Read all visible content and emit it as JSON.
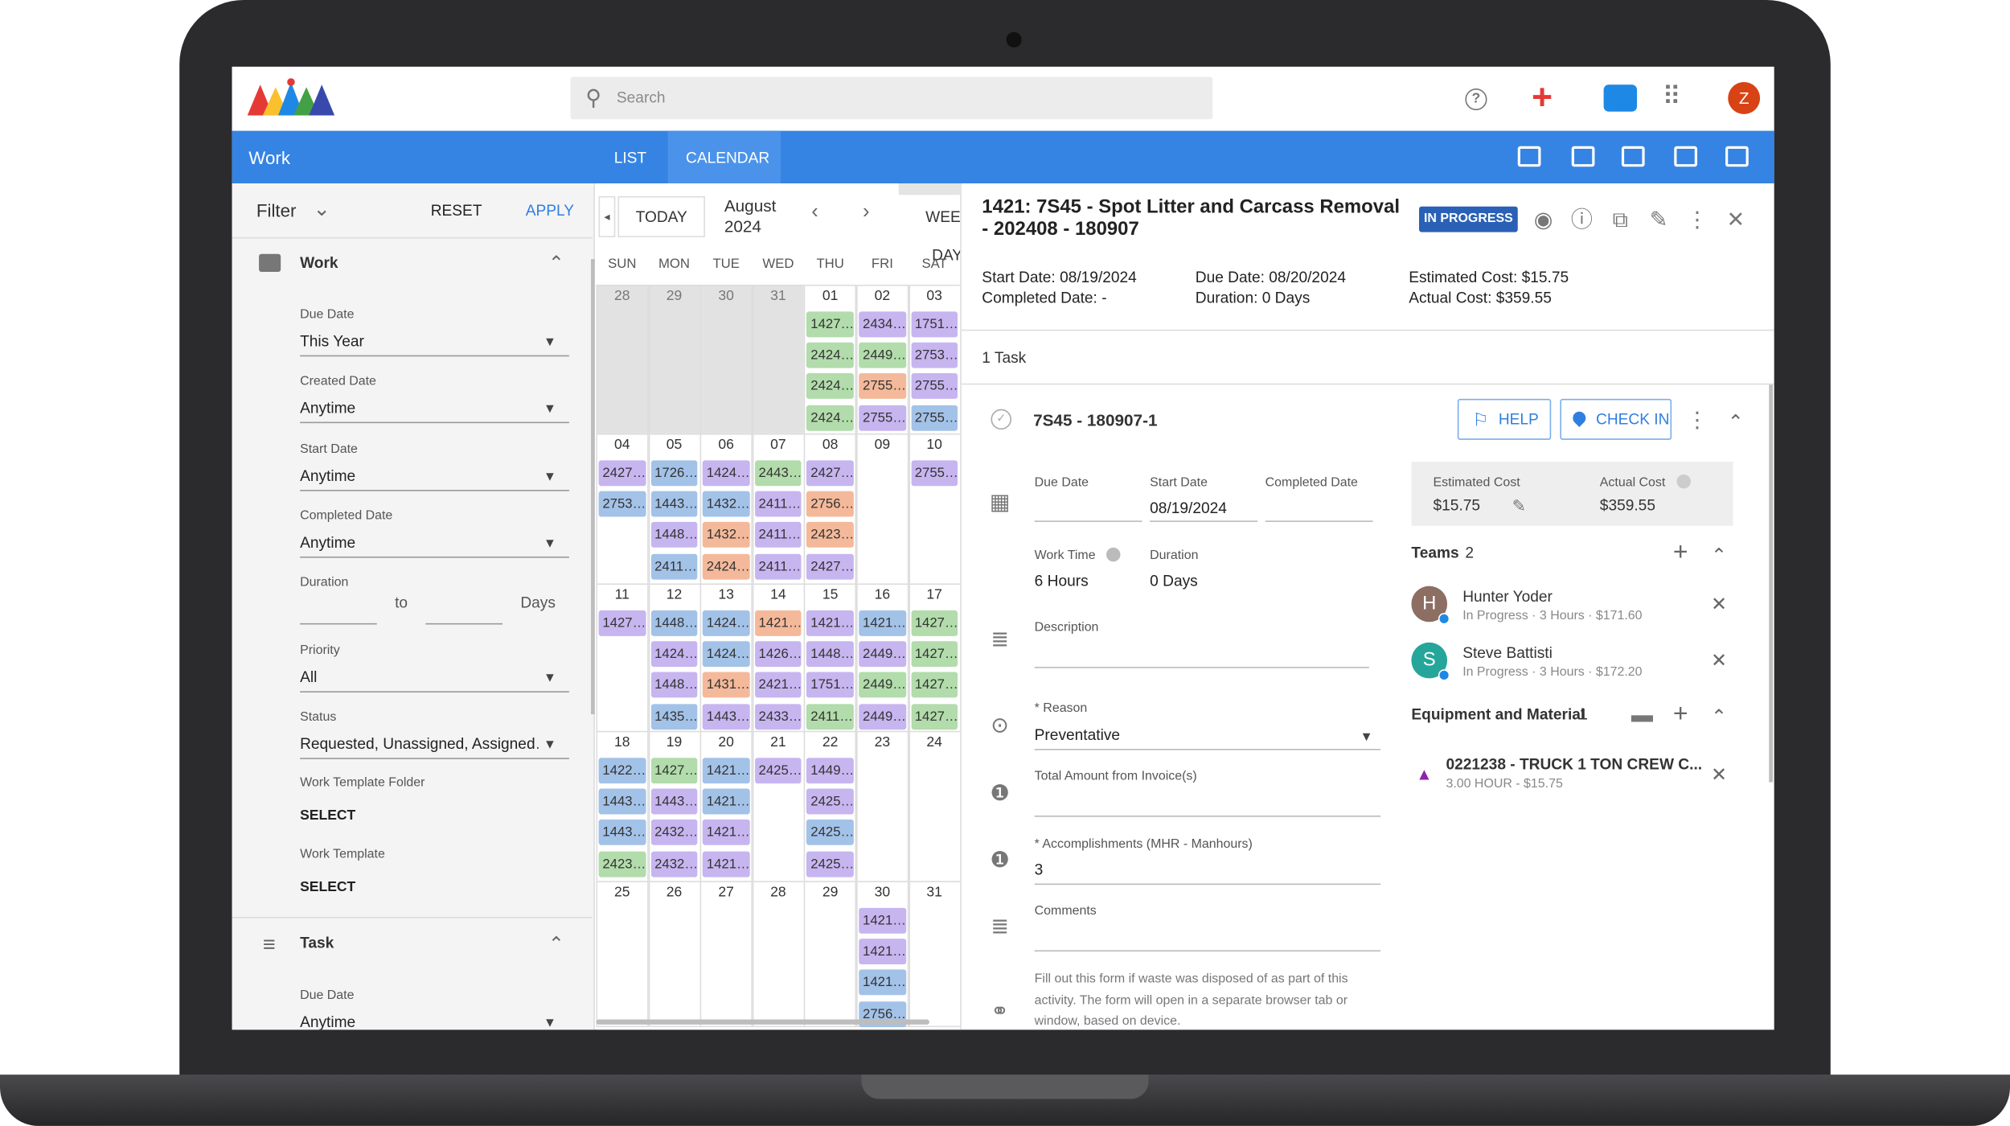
{
  "header": {
    "search_placeholder": "Search",
    "avatar": "Z"
  },
  "nav": {
    "section": "Work",
    "tabs": [
      "LIST",
      "CALENDAR"
    ]
  },
  "filter": {
    "title": "Filter",
    "reset": "RESET",
    "apply": "APPLY",
    "work_group": "Work",
    "fields": [
      {
        "label": "Due Date",
        "value": "This Year"
      },
      {
        "label": "Created Date",
        "value": "Anytime"
      },
      {
        "label": "Start Date",
        "value": "Anytime"
      },
      {
        "label": "Completed Date",
        "value": "Anytime"
      },
      {
        "label": "Priority",
        "value": "All"
      },
      {
        "label": "Status",
        "value": "Requested, Unassigned, Assigned…"
      }
    ],
    "duration": {
      "label": "Duration",
      "to": "to",
      "unit": "Days"
    },
    "templates": [
      {
        "label": "Work Template Folder",
        "value": "SELECT"
      },
      {
        "label": "Work Template",
        "value": "SELECT"
      }
    ],
    "task_group": "Task",
    "task_fields": [
      {
        "label": "Due Date",
        "value": "Anytime"
      }
    ]
  },
  "calendar": {
    "today": "TODAY",
    "month": "August 2024",
    "views": [
      "WEEK",
      "DAY"
    ],
    "weekdays": [
      "SUN",
      "MON",
      "TUE",
      "WED",
      "THU",
      "FRI",
      "SAT"
    ],
    "palette": {
      "g": "#b2dcab",
      "p": "#c7b5f0",
      "b": "#a3c2e8",
      "o": "#f4b99a"
    },
    "weeks": [
      [
        {
          "day": "28",
          "outside": true,
          "events": []
        },
        {
          "day": "29",
          "outside": true,
          "events": []
        },
        {
          "day": "30",
          "outside": true,
          "events": []
        },
        {
          "day": "31",
          "outside": true,
          "events": []
        },
        {
          "day": "01",
          "events": [
            [
              "1427…",
              "g"
            ],
            [
              "2424…",
              "g"
            ],
            [
              "2424…",
              "g"
            ],
            [
              "2424…",
              "g"
            ]
          ]
        },
        {
          "day": "02",
          "events": [
            [
              "2434…",
              "p"
            ],
            [
              "2449…",
              "g"
            ],
            [
              "2755…",
              "o"
            ],
            [
              "2755…",
              "p"
            ]
          ]
        },
        {
          "day": "03",
          "events": [
            [
              "1751…",
              "p"
            ],
            [
              "2753…",
              "p"
            ],
            [
              "2755…",
              "p"
            ],
            [
              "2755…",
              "b"
            ]
          ]
        }
      ],
      [
        {
          "day": "04",
          "events": [
            [
              "2427…",
              "p"
            ],
            [
              "2753…",
              "b"
            ]
          ]
        },
        {
          "day": "05",
          "events": [
            [
              "1726…",
              "b"
            ],
            [
              "1443…",
              "b"
            ],
            [
              "1448…",
              "p"
            ],
            [
              "2411…",
              "b"
            ]
          ]
        },
        {
          "day": "06",
          "events": [
            [
              "1424…",
              "p"
            ],
            [
              "1432…",
              "b"
            ],
            [
              "1432…",
              "o"
            ],
            [
              "2424…",
              "o"
            ]
          ]
        },
        {
          "day": "07",
          "events": [
            [
              "2443…",
              "g"
            ],
            [
              "2411…",
              "p"
            ],
            [
              "2411…",
              "p"
            ],
            [
              "2411…",
              "p"
            ]
          ]
        },
        {
          "day": "08",
          "events": [
            [
              "2427…",
              "p"
            ],
            [
              "2756…",
              "o"
            ],
            [
              "2423…",
              "o"
            ],
            [
              "2427…",
              "p"
            ]
          ]
        },
        {
          "day": "09",
          "events": []
        },
        {
          "day": "10",
          "events": [
            [
              "2755…",
              "p"
            ]
          ]
        }
      ],
      [
        {
          "day": "11",
          "events": [
            [
              "1427…",
              "p"
            ]
          ]
        },
        {
          "day": "12",
          "events": [
            [
              "1448…",
              "b"
            ],
            [
              "1424…",
              "p"
            ],
            [
              "1448…",
              "p"
            ],
            [
              "1435…",
              "b"
            ]
          ]
        },
        {
          "day": "13",
          "events": [
            [
              "1424…",
              "b"
            ],
            [
              "1424…",
              "b"
            ],
            [
              "1431…",
              "o"
            ],
            [
              "1443…",
              "p"
            ]
          ]
        },
        {
          "day": "14",
          "events": [
            [
              "1421…",
              "o"
            ],
            [
              "1426…",
              "p"
            ],
            [
              "2421…",
              "p"
            ],
            [
              "2433…",
              "p"
            ]
          ]
        },
        {
          "day": "15",
          "events": [
            [
              "1421…",
              "p"
            ],
            [
              "1448…",
              "p"
            ],
            [
              "1751…",
              "p"
            ],
            [
              "2411…",
              "g"
            ]
          ]
        },
        {
          "day": "16",
          "events": [
            [
              "1421…",
              "b"
            ],
            [
              "2449…",
              "p"
            ],
            [
              "2449…",
              "g"
            ],
            [
              "2449…",
              "p"
            ]
          ]
        },
        {
          "day": "17",
          "events": [
            [
              "1427…",
              "g"
            ],
            [
              "1427…",
              "g"
            ],
            [
              "1427…",
              "g"
            ],
            [
              "1427…",
              "g"
            ]
          ]
        }
      ],
      [
        {
          "day": "18",
          "events": [
            [
              "1422…",
              "b"
            ],
            [
              "1443…",
              "b"
            ],
            [
              "1443…",
              "b"
            ],
            [
              "2423…",
              "g"
            ]
          ]
        },
        {
          "day": "19",
          "events": [
            [
              "1427…",
              "g"
            ],
            [
              "1443…",
              "p"
            ],
            [
              "2432…",
              "p"
            ],
            [
              "2432…",
              "p"
            ]
          ]
        },
        {
          "day": "20",
          "events": [
            [
              "1421…",
              "b"
            ],
            [
              "1421…",
              "b"
            ],
            [
              "1421…",
              "p"
            ],
            [
              "1421…",
              "p"
            ]
          ]
        },
        {
          "day": "21",
          "events": [
            [
              "2425…",
              "p"
            ]
          ]
        },
        {
          "day": "22",
          "events": [
            [
              "1449…",
              "p"
            ],
            [
              "2425…",
              "p"
            ],
            [
              "2425…",
              "b"
            ],
            [
              "2425…",
              "p"
            ]
          ]
        },
        {
          "day": "23",
          "events": []
        },
        {
          "day": "24",
          "events": []
        }
      ],
      [
        {
          "day": "25",
          "events": []
        },
        {
          "day": "26",
          "events": []
        },
        {
          "day": "27",
          "events": []
        },
        {
          "day": "28",
          "events": []
        },
        {
          "day": "29",
          "events": []
        },
        {
          "day": "30",
          "events": [
            [
              "1421…",
              "p"
            ],
            [
              "1421…",
              "p"
            ],
            [
              "1421…",
              "b"
            ],
            [
              "2756…",
              "b"
            ]
          ]
        },
        {
          "day": "31",
          "events": []
        }
      ]
    ]
  },
  "detail": {
    "title": "1421: 7S45 - Spot Litter and Carcass Removal - 202408 - 180907",
    "status": "IN PROGRESS",
    "summary": [
      [
        "Start Date: 08/19/2024",
        "Completed Date: -"
      ],
      [
        "Due Date: 08/20/2024",
        "Duration: 0 Days"
      ],
      [
        "Estimated Cost: $15.75",
        "Actual Cost: $359.55"
      ]
    ],
    "task_count": "1 Task",
    "task": {
      "name": "7S45 - 180907-1",
      "help": "HELP",
      "check_in": "CHECK IN",
      "dates": [
        {
          "label": "Due Date",
          "value": ""
        },
        {
          "label": "Start Date",
          "value": "08/19/2024"
        },
        {
          "label": "Completed Date",
          "value": ""
        }
      ],
      "work_time": {
        "label": "Work Time",
        "value": "6 Hours"
      },
      "duration": {
        "label": "Duration",
        "value": "0 Days"
      },
      "description": "Description",
      "reason": {
        "label": "* Reason",
        "value": "Preventative"
      },
      "invoice": "Total Amount from Invoice(s)",
      "accomplishments": {
        "label": "* Accomplishments (MHR - Manhours)",
        "value": "3"
      },
      "comments": "Comments",
      "note": "Fill out this form if waste was disposed of as part of this activity. The form will open in a separate browser tab or window, based on device.",
      "costs": [
        {
          "label": "Estimated Cost",
          "value": "$15.75"
        },
        {
          "label": "Actual Cost",
          "value": "$359.55"
        }
      ],
      "teams": {
        "title": "Teams",
        "count": "2",
        "members": [
          {
            "initial": "H",
            "name": "Hunter Yoder",
            "detail": "In Progress · 3 Hours · $171.60"
          },
          {
            "initial": "S",
            "name": "Steve Battisti",
            "detail": "In Progress · 3 Hours · $172.20"
          }
        ]
      },
      "equipment": {
        "title": "Equipment and Material",
        "count": "1",
        "items": [
          {
            "name": "0221238 - TRUCK 1 TON CREW C...",
            "detail": "3.00 HOUR - $15.75"
          }
        ]
      }
    }
  }
}
